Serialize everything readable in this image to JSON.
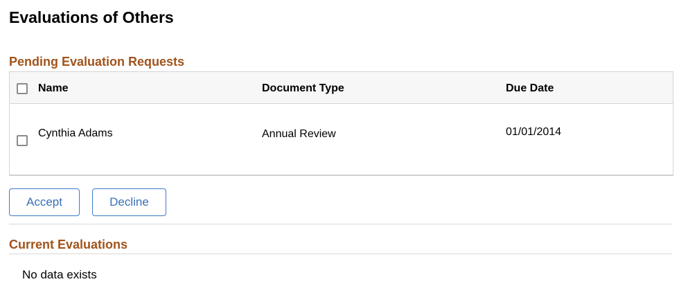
{
  "page": {
    "title": "Evaluations of Others"
  },
  "pending": {
    "title": "Pending Evaluation Requests",
    "columns": [
      "Name",
      "Document Type",
      "Due Date"
    ],
    "rows": [
      {
        "name": "Cynthia Adams",
        "document_type": "Annual Review",
        "due_date": "01/01/2014"
      }
    ]
  },
  "actions": {
    "accept": "Accept",
    "decline": "Decline"
  },
  "current": {
    "title": "Current Evaluations",
    "empty": "No data exists"
  }
}
